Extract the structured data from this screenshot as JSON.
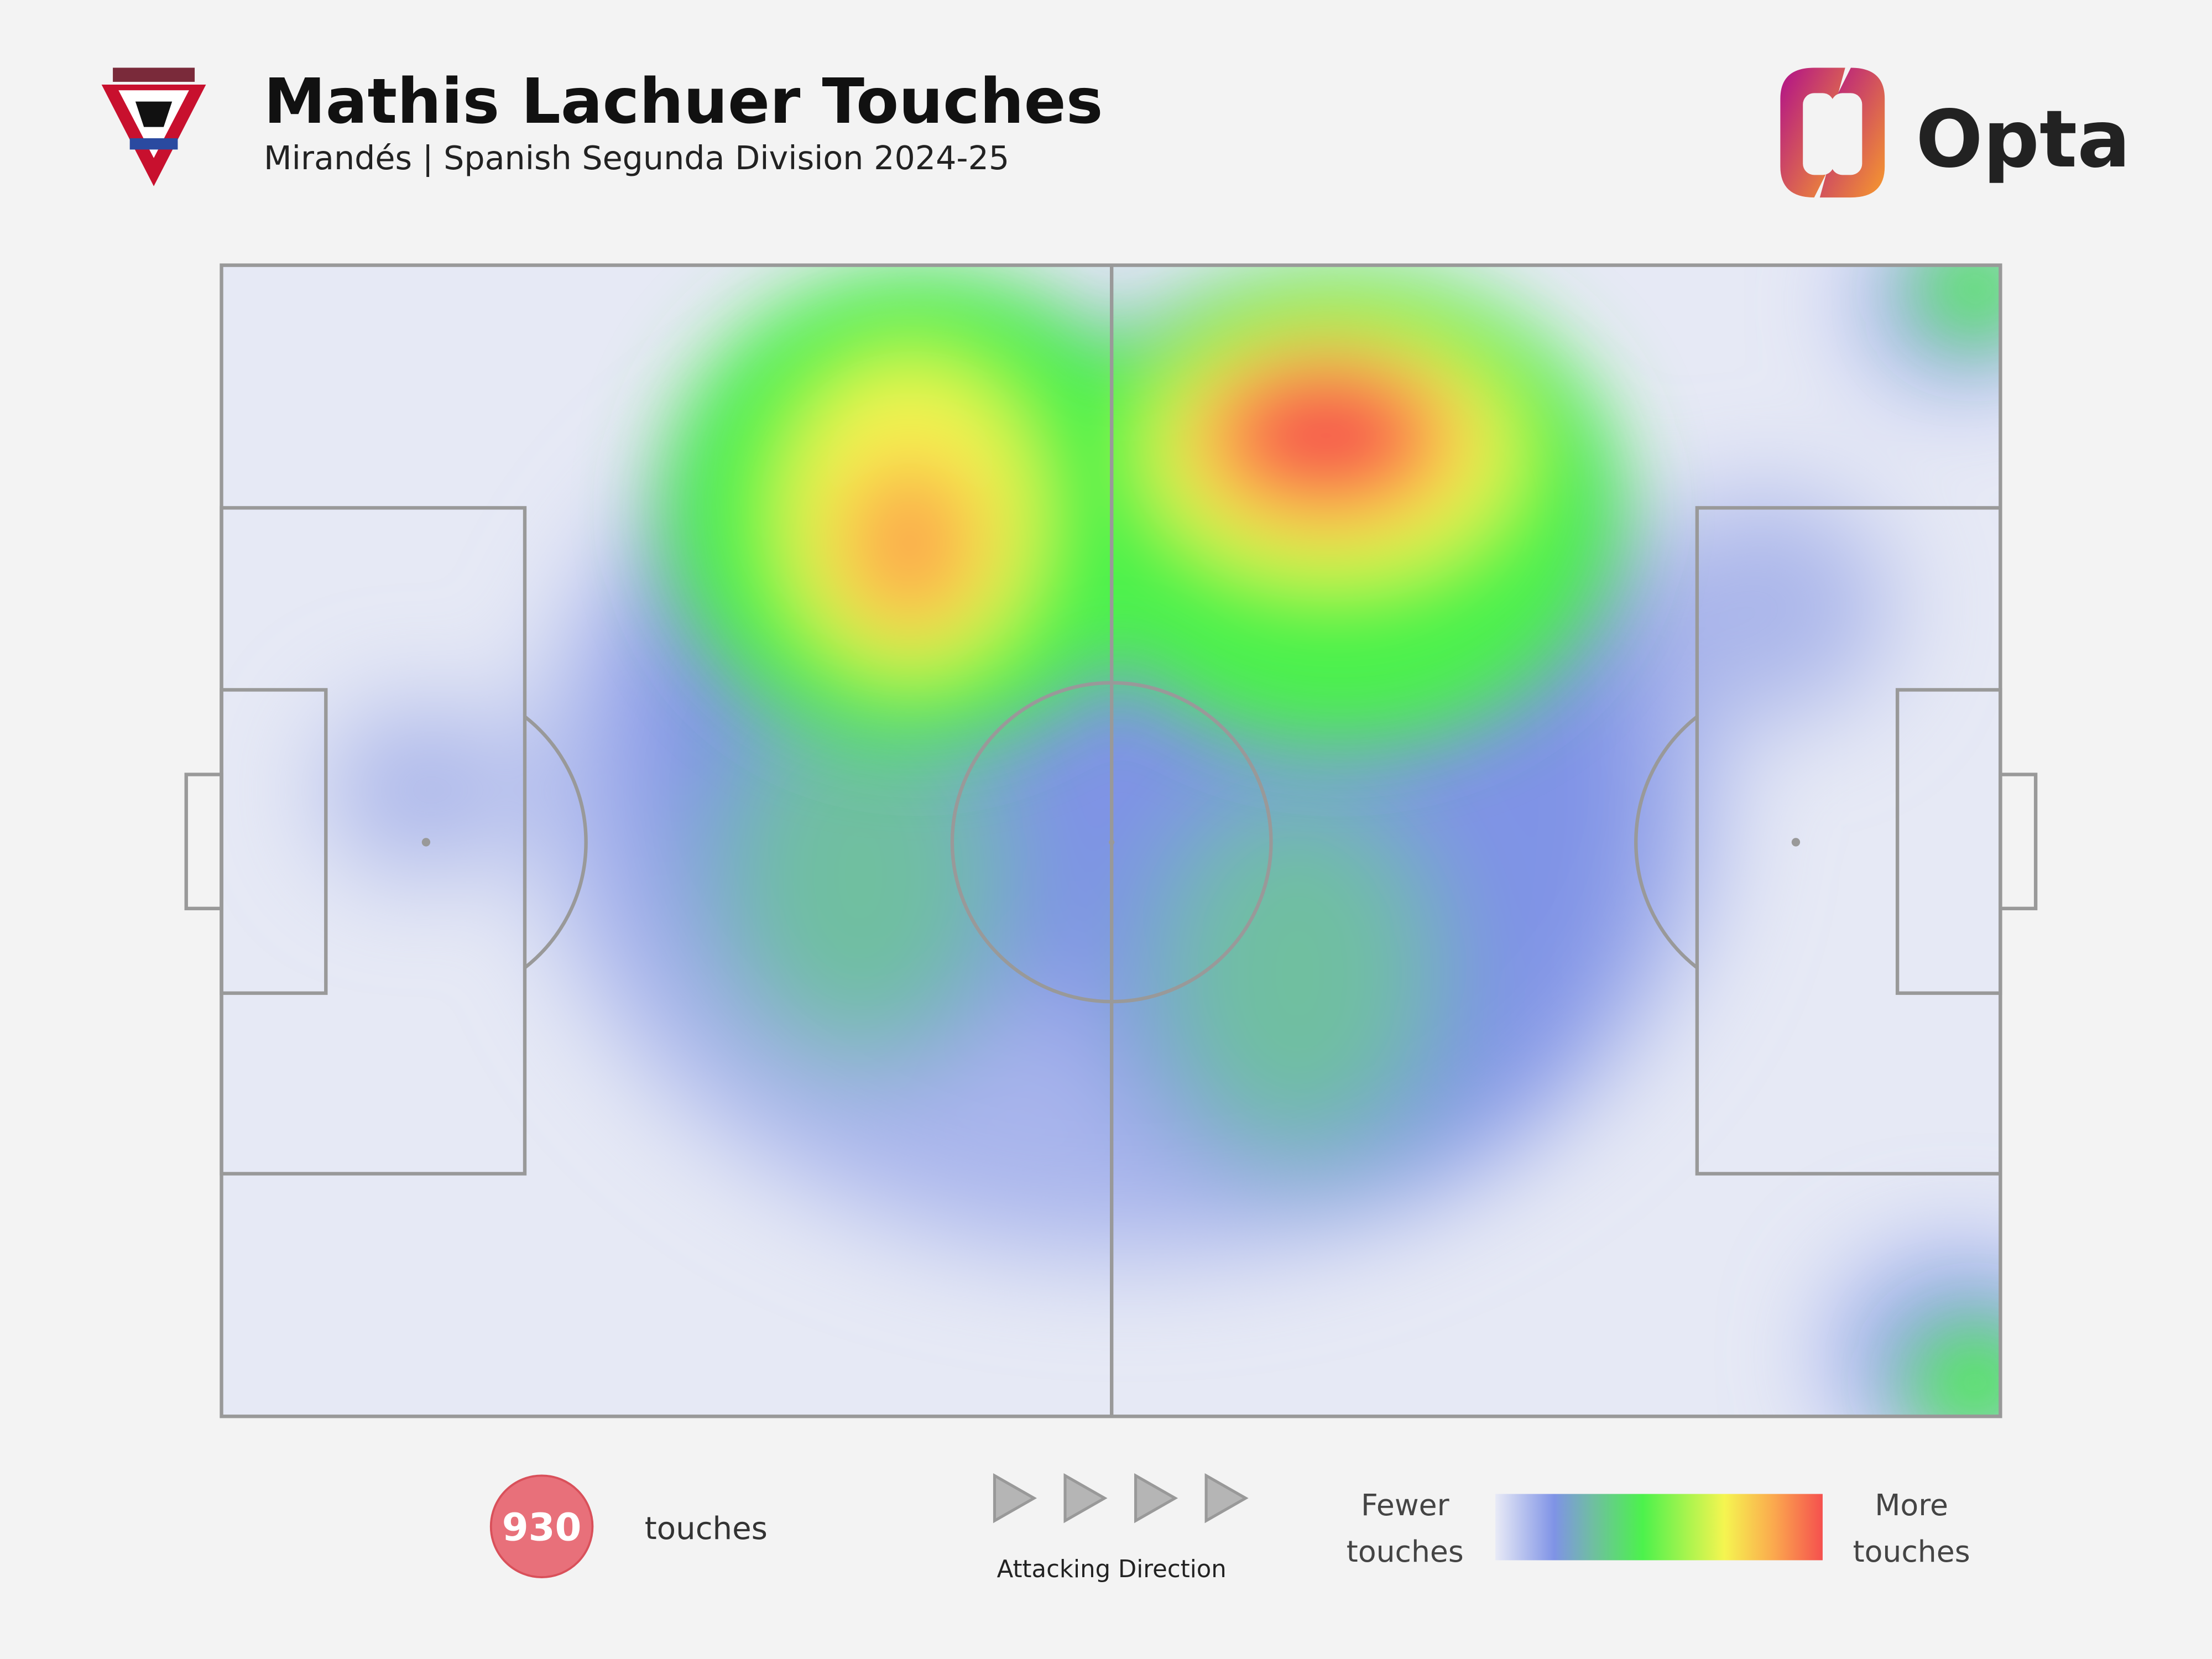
{
  "header": {
    "title": "Mathis Lachuer Touches",
    "subtitle": "Mirandés | Spanish Segunda Division 2024-25",
    "brand": "Opta"
  },
  "stats": {
    "touches": 930,
    "touches_label": "touches"
  },
  "direction_label": "Attacking Direction",
  "legend": {
    "low": [
      "Fewer",
      "touches"
    ],
    "high": [
      "More",
      "touches"
    ]
  }
}
